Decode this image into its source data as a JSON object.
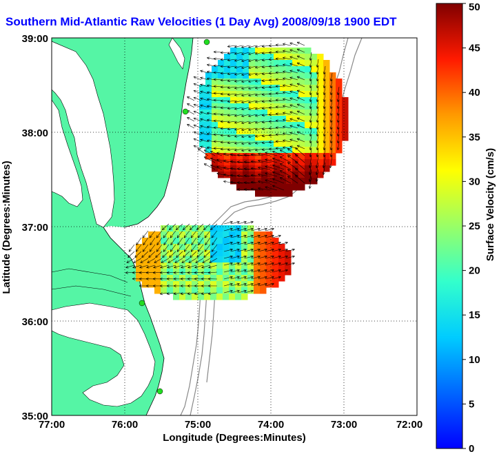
{
  "title": "Southern Mid-Atlantic Raw Velocities (1 Day Avg) 2008/09/18 1900 EDT",
  "xlabel": "Longitude (Degrees:Minutes)",
  "ylabel": "Latitude (Degrees:Minutes)",
  "x_ticks": [
    "77:00",
    "76:00",
    "75:00",
    "74:00",
    "73:00",
    "72:00"
  ],
  "y_ticks": [
    "39:00",
    "38:00",
    "37:00",
    "36:00",
    "35:00"
  ],
  "colorbar": {
    "label": "Surface Velocity (cm/s)",
    "ticks": [
      "0",
      "5",
      "10",
      "15",
      "20",
      "25",
      "30",
      "35",
      "40",
      "45",
      "50"
    ],
    "min": 0,
    "max": 50
  },
  "map": {
    "lon_range": [
      -77,
      -72
    ],
    "lat_range": [
      35,
      39
    ],
    "land_color": "#55f5a5",
    "ocean_color": "#ffffff",
    "station_color": "#22dd22",
    "arrow_color": "#000000",
    "contour_color": "#888888"
  }
}
